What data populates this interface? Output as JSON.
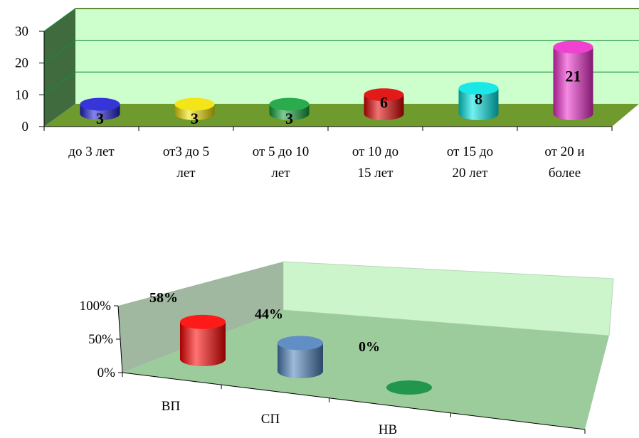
{
  "chart_data": [
    {
      "type": "bar",
      "style": "3d-cylinder",
      "categories": [
        [
          "до 3 лет"
        ],
        [
          "от3 до 5",
          "лет"
        ],
        [
          "от 5 до 10",
          "лет"
        ],
        [
          "от 10 до",
          "15 лет"
        ],
        [
          "от 15 до",
          "20 лет"
        ],
        [
          "от 20 и",
          "более"
        ]
      ],
      "values": [
        3,
        3,
        3,
        6,
        8,
        21
      ],
      "data_labels": [
        "3",
        "3",
        "3",
        "6",
        "8",
        "21"
      ],
      "colors": [
        "#1f1fd6",
        "#f2e200",
        "#12a33a",
        "#e00000",
        "#00e5e5",
        "#ee2ccc"
      ],
      "ylim": [
        0,
        30
      ],
      "yticks": [
        "0",
        "10",
        "20",
        "30"
      ],
      "grid": true,
      "wall_color": "#ccffcc",
      "floor_color": "#6e9a2e"
    },
    {
      "type": "bar",
      "style": "3d-cylinder",
      "categories": [
        "ВП",
        "СП",
        "НВ"
      ],
      "values": [
        58,
        44,
        0
      ],
      "data_labels": [
        "58%",
        "44%",
        "0%"
      ],
      "colors": [
        "#ff0000",
        "#4f81bd",
        "#0b8a3a"
      ],
      "ylim": [
        0,
        100
      ],
      "yticks": [
        "0%",
        "50%",
        "100%"
      ],
      "wall_color": "#ccf5cc",
      "floor_color": "#9ccc9c"
    }
  ]
}
